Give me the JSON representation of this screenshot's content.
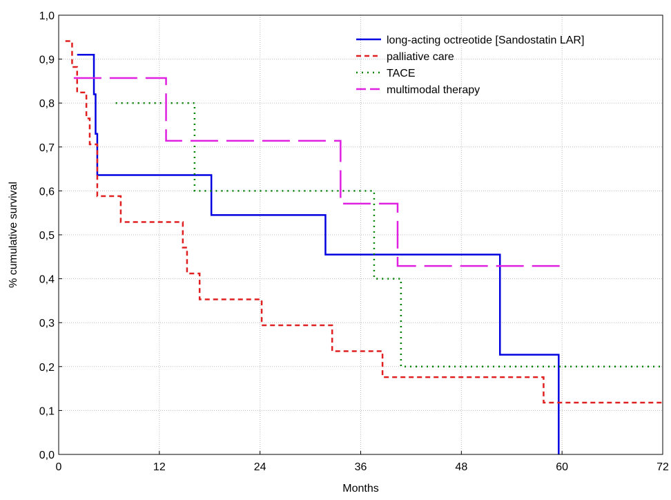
{
  "chart_data": {
    "type": "line",
    "subtype": "step",
    "title": "",
    "xlabel": "Months",
    "ylabel": "% cumulative survival",
    "xlim": [
      0,
      72
    ],
    "ylim": [
      0,
      1
    ],
    "x_ticks": [
      "0",
      "12",
      "24",
      "36",
      "48",
      "60",
      "72"
    ],
    "y_ticks": [
      "0,0",
      "0,1",
      "0,2",
      "0,3",
      "0,4",
      "0,5",
      "0,6",
      "0,7",
      "0,8",
      "0,9",
      "1,0"
    ],
    "grid": true,
    "legend_position": "top-right",
    "series": [
      {
        "name": "long-acting octreotide [Sandostatin LAR]",
        "color": "#0000e0",
        "style": "solid",
        "x": [
          2.2,
          4.2,
          4.4,
          4.6,
          18.2,
          31.8,
          52.6,
          59.6
        ],
        "y": [
          0.91,
          0.82,
          0.73,
          0.636,
          0.545,
          0.455,
          0.227,
          0.0
        ]
      },
      {
        "name": "palliative care",
        "color": "#e02020",
        "style": "dashed",
        "x": [
          0.8,
          1.6,
          2.2,
          3.3,
          3.7,
          4.6,
          7.4,
          14.8,
          15.3,
          16.8,
          17.4,
          24.2,
          32.6,
          38.6,
          57.8,
          72.0
        ],
        "y": [
          0.941,
          0.882,
          0.824,
          0.765,
          0.706,
          0.588,
          0.529,
          0.471,
          0.412,
          0.353,
          0.353,
          0.294,
          0.235,
          0.176,
          0.118,
          0.118
        ]
      },
      {
        "name": "TACE",
        "color": "#008000",
        "style": "dotted",
        "x": [
          6.8,
          16.2,
          37.6,
          40.8,
          72.0
        ],
        "y": [
          0.8,
          0.6,
          0.4,
          0.2,
          0.2
        ]
      },
      {
        "name": "multimodal therapy",
        "color": "#e020e0",
        "style": "longdash",
        "x": [
          1.8,
          12.8,
          33.6,
          40.4,
          60.5
        ],
        "y": [
          0.857,
          0.714,
          0.571,
          0.429,
          0.429
        ]
      }
    ]
  }
}
